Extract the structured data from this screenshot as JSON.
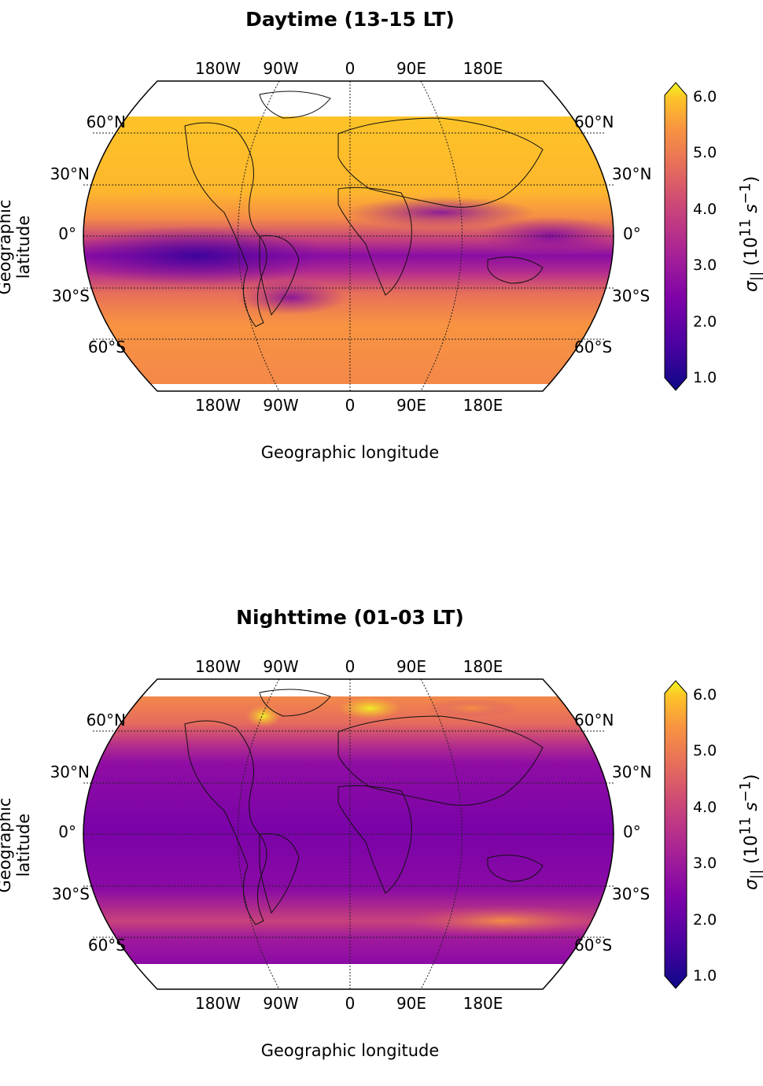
{
  "panels": [
    {
      "title": "Daytime (13-15 LT)",
      "mode": "day",
      "ylabel": "Geographic latitude",
      "xlabel": "Geographic longitude",
      "lon_ticks": [
        "180W",
        "90W",
        "0",
        "90E",
        "180E"
      ],
      "lat_ticks": [
        "60°N",
        "30°N",
        "0°",
        "30°S",
        "60°S"
      ]
    },
    {
      "title": "Nighttime (01-03 LT)",
      "mode": "night",
      "ylabel": "Geographic latitude",
      "xlabel": "Geographic longitude",
      "lon_ticks": [
        "180W",
        "90W",
        "0",
        "90E",
        "180E"
      ],
      "lat_ticks": [
        "60°N",
        "30°N",
        "0°",
        "30°S",
        "60°S"
      ]
    }
  ],
  "colorbar": {
    "colormap": "plasma",
    "min": 1.0,
    "max": 6.0,
    "extend": "both",
    "ticks": [
      "6.0",
      "5.0",
      "4.0",
      "3.0",
      "2.0",
      "1.0"
    ],
    "label_symbol": "σ",
    "label_subscript": "||",
    "label_units": "(10",
    "label_exp": "11",
    "label_unit2": " s",
    "label_unit2_exp": "−1",
    "label_close": ")"
  },
  "colors": {
    "plasma_low": "#0d0887",
    "plasma_mid": "#cc4778",
    "plasma_high": "#f0f921"
  }
}
